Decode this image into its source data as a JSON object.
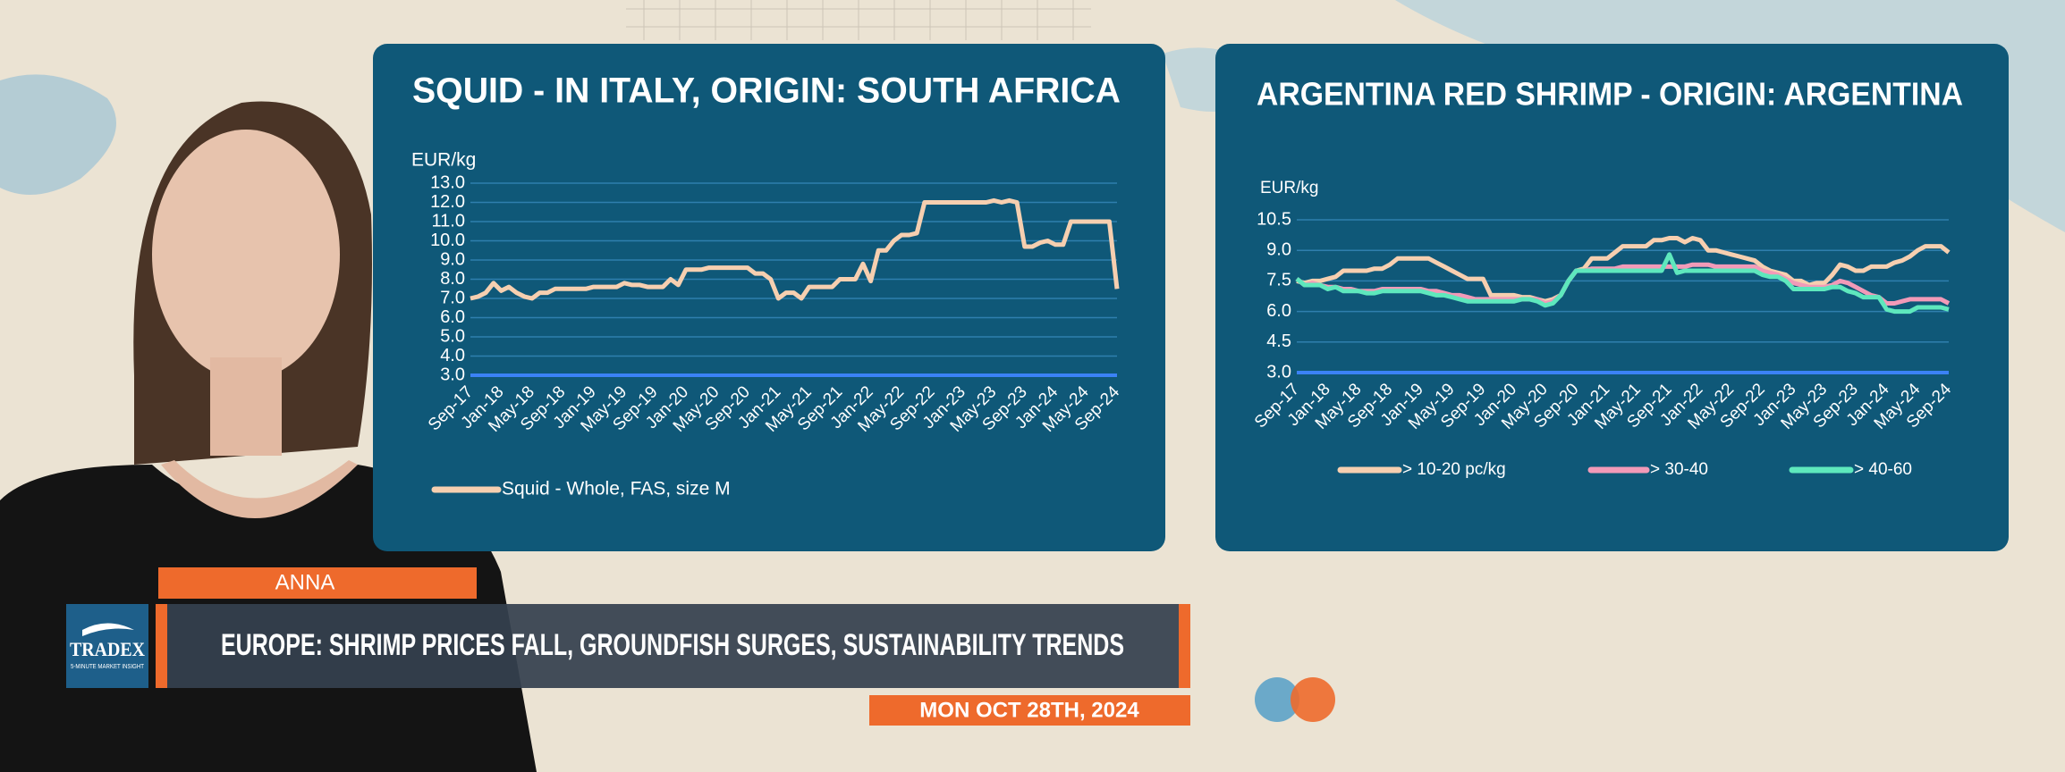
{
  "chart_data": [
    {
      "type": "line",
      "title": "SQUID - IN ITALY, ORIGIN: SOUTH AFRICA",
      "y_label": "EUR/kg",
      "categories": [
        "Sep-17",
        null,
        null,
        null,
        "Jan-18",
        null,
        null,
        null,
        "May-18",
        null,
        null,
        null,
        "Sep-18",
        null,
        null,
        null,
        "Jan-19",
        null,
        null,
        null,
        "May-19",
        null,
        null,
        null,
        "Sep-19",
        null,
        null,
        null,
        "Jan-20",
        null,
        null,
        null,
        "May-20",
        null,
        null,
        null,
        "Sep-20",
        null,
        null,
        null,
        "Jan-21",
        null,
        null,
        null,
        "May-21",
        null,
        null,
        null,
        "Sep-21",
        null,
        null,
        null,
        "Jan-22",
        null,
        null,
        null,
        "May-22",
        null,
        null,
        null,
        "Sep-22",
        null,
        null,
        null,
        "Jan-23",
        null,
        null,
        null,
        "May-23",
        null,
        null,
        null,
        "Sep-23",
        null,
        null,
        null,
        "Jan-24",
        null,
        null,
        null,
        "May-24",
        null,
        null,
        null,
        "Sep-24"
      ],
      "series": [
        {
          "name": "Squid - Whole, FAS, size M",
          "color": "#f6cfb0",
          "values": [
            7.0,
            7.1,
            7.3,
            7.8,
            7.4,
            7.6,
            7.3,
            7.1,
            7.0,
            7.3,
            7.3,
            7.5,
            7.5,
            7.5,
            7.5,
            7.5,
            7.6,
            7.6,
            7.6,
            7.6,
            7.8,
            7.7,
            7.7,
            7.6,
            7.6,
            7.6,
            8.0,
            7.7,
            8.5,
            8.5,
            8.5,
            8.6,
            8.6,
            8.6,
            8.6,
            8.6,
            8.6,
            8.3,
            8.3,
            8.0,
            7.0,
            7.3,
            7.3,
            7.0,
            7.6,
            7.6,
            7.6,
            7.6,
            8.0,
            8.0,
            8.0,
            8.8,
            7.9,
            9.5,
            9.5,
            10.0,
            10.3,
            10.3,
            10.4,
            12.0,
            12.0,
            12.0,
            12.0,
            12.0,
            12.0,
            12.0,
            12.0,
            12.0,
            12.1,
            12.0,
            12.1,
            12.0,
            9.7,
            9.7,
            9.9,
            10.0,
            9.8,
            9.8,
            11.0,
            11.0,
            11.0,
            11.0,
            11.0,
            11.0,
            7.5
          ]
        }
      ],
      "ylim": [
        3,
        13
      ],
      "yticks": [
        {
          "value": 3,
          "label": "3.0"
        },
        {
          "value": 4,
          "label": "4.0"
        },
        {
          "value": 5,
          "label": "5.0"
        },
        {
          "value": 6,
          "label": "6.0"
        },
        {
          "value": 7,
          "label": "7.0"
        },
        {
          "value": 8,
          "label": "8.0"
        },
        {
          "value": 9,
          "label": "9.0"
        },
        {
          "value": 10,
          "label": "10.0"
        },
        {
          "value": 11,
          "label": "11.0"
        },
        {
          "value": 12,
          "label": "12.0"
        },
        {
          "value": 13,
          "label": "13.0"
        }
      ],
      "grid": true,
      "legend": "bottom"
    },
    {
      "type": "line",
      "title": "ARGENTINA RED SHRIMP - ORIGIN: ARGENTINA",
      "y_label": "EUR/kg",
      "categories": [
        "Sep-17",
        null,
        null,
        null,
        "Jan-18",
        null,
        null,
        null,
        "May-18",
        null,
        null,
        null,
        "Sep-18",
        null,
        null,
        null,
        "Jan-19",
        null,
        null,
        null,
        "May-19",
        null,
        null,
        null,
        "Sep-19",
        null,
        null,
        null,
        "Jan-20",
        null,
        null,
        null,
        "May-20",
        null,
        null,
        null,
        "Sep-20",
        null,
        null,
        null,
        "Jan-21",
        null,
        null,
        null,
        "May-21",
        null,
        null,
        null,
        "Sep-21",
        null,
        null,
        null,
        "Jan-22",
        null,
        null,
        null,
        "May-22",
        null,
        null,
        null,
        "Sep-22",
        null,
        null,
        null,
        "Jan-23",
        null,
        null,
        null,
        "May-23",
        null,
        null,
        null,
        "Sep-23",
        null,
        null,
        null,
        "Jan-24",
        null,
        null,
        null,
        "May-24",
        null,
        null,
        null,
        "Sep-24"
      ],
      "series": [
        {
          "name": "> 10-20 pc/kg",
          "color": "#f6cfb0",
          "values": [
            7.5,
            7.4,
            7.5,
            7.5,
            7.6,
            7.7,
            8.0,
            8.0,
            8.0,
            8.0,
            8.1,
            8.1,
            8.3,
            8.6,
            8.6,
            8.6,
            8.6,
            8.6,
            8.4,
            8.2,
            8.0,
            7.8,
            7.6,
            7.6,
            7.6,
            6.8,
            6.8,
            6.8,
            6.8,
            6.7,
            6.7,
            6.6,
            6.5,
            6.6,
            6.8,
            7.5,
            8.0,
            8.1,
            8.6,
            8.6,
            8.6,
            8.9,
            9.2,
            9.2,
            9.2,
            9.2,
            9.5,
            9.5,
            9.6,
            9.6,
            9.4,
            9.6,
            9.5,
            9.0,
            9.0,
            8.9,
            8.8,
            8.7,
            8.6,
            8.5,
            8.2,
            8.0,
            7.9,
            7.8,
            7.5,
            7.5,
            7.3,
            7.4,
            7.4,
            7.8,
            8.3,
            8.2,
            8.0,
            8.0,
            8.2,
            8.2,
            8.2,
            8.4,
            8.5,
            8.7,
            9.0,
            9.2,
            9.2,
            9.2,
            8.9
          ]
        },
        {
          "name": "> 30-40",
          "color": "#f29ab8",
          "values": [
            7.6,
            7.3,
            7.4,
            7.3,
            7.2,
            7.2,
            7.1,
            7.1,
            7.0,
            7.0,
            7.0,
            7.1,
            7.1,
            7.1,
            7.1,
            7.1,
            7.1,
            7.0,
            7.0,
            6.9,
            6.8,
            6.8,
            6.7,
            6.6,
            6.6,
            6.6,
            6.6,
            6.6,
            6.6,
            6.6,
            6.6,
            6.6,
            6.4,
            6.5,
            6.8,
            7.5,
            8.0,
            8.0,
            8.1,
            8.1,
            8.1,
            8.1,
            8.2,
            8.2,
            8.2,
            8.2,
            8.2,
            8.2,
            8.2,
            8.2,
            8.2,
            8.3,
            8.3,
            8.3,
            8.2,
            8.2,
            8.2,
            8.2,
            8.2,
            8.2,
            8.0,
            7.9,
            7.8,
            7.6,
            7.4,
            7.3,
            7.2,
            7.2,
            7.2,
            7.3,
            7.5,
            7.4,
            7.2,
            7.0,
            6.8,
            6.7,
            6.4,
            6.4,
            6.5,
            6.6,
            6.6,
            6.6,
            6.6,
            6.6,
            6.4
          ]
        },
        {
          "name": "> 40-60",
          "color": "#5ee8bd",
          "values": [
            7.6,
            7.3,
            7.3,
            7.3,
            7.1,
            7.2,
            7.0,
            7.0,
            7.0,
            6.9,
            6.9,
            7.0,
            7.0,
            7.0,
            7.0,
            7.0,
            7.0,
            6.9,
            6.8,
            6.8,
            6.7,
            6.6,
            6.5,
            6.5,
            6.5,
            6.5,
            6.5,
            6.5,
            6.5,
            6.6,
            6.6,
            6.5,
            6.3,
            6.4,
            6.8,
            7.5,
            8.0,
            8.0,
            8.0,
            8.0,
            8.0,
            8.0,
            8.0,
            8.0,
            8.0,
            8.0,
            8.0,
            8.0,
            8.8,
            7.9,
            8.0,
            8.0,
            8.0,
            8.0,
            8.0,
            8.0,
            8.0,
            8.0,
            8.0,
            8.0,
            7.8,
            7.7,
            7.7,
            7.5,
            7.1,
            7.1,
            7.1,
            7.1,
            7.1,
            7.2,
            7.2,
            7.0,
            6.9,
            6.7,
            6.7,
            6.7,
            6.1,
            6.0,
            6.0,
            6.0,
            6.2,
            6.2,
            6.2,
            6.2,
            6.1
          ]
        }
      ],
      "ylim": [
        3,
        10.5
      ],
      "yticks": [
        {
          "value": 3,
          "label": "3.0"
        },
        4.5,
        {
          "value": 6,
          "label": "6.0"
        },
        7.5,
        {
          "value": 9,
          "label": "9.0"
        },
        10.5
      ],
      "grid": true,
      "legend": "bottom"
    }
  ],
  "presenter": {
    "name": "ANNA"
  },
  "headline": "EUROPE: SHRIMP PRICES FALL, GROUNDFISH SURGES, SUSTAINABILITY TRENDS",
  "date": "MON OCT 28TH, 2024",
  "logo": {
    "name": "TRADEX",
    "tagline": "5-MINUTE MARKET INSIGHT"
  }
}
